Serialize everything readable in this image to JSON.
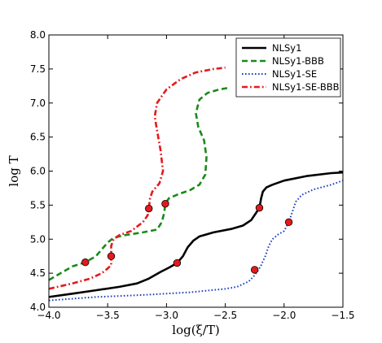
{
  "chart_data": {
    "type": "line",
    "xlabel": "log(ξ/T)",
    "ylabel": "log T",
    "xlim": [
      -4.0,
      -1.5
    ],
    "ylim": [
      4.0,
      8.0
    ],
    "xticks": [
      -4.0,
      -3.5,
      -3.0,
      -2.5,
      -2.0,
      -1.5
    ],
    "xtick_labels": [
      "−4.0",
      "−3.5",
      "−3.0",
      "−2.5",
      "−2.0",
      "−1.5"
    ],
    "yticks": [
      4.0,
      4.5,
      5.0,
      5.5,
      6.0,
      6.5,
      7.0,
      7.5,
      8.0
    ],
    "ytick_labels": [
      "4.0",
      "4.5",
      "5.0",
      "5.5",
      "6.0",
      "6.5",
      "7.0",
      "7.5",
      "8.0"
    ],
    "grid": false,
    "legend_position": "top-right",
    "marker_color": "#e31a1c",
    "series": [
      {
        "name": "NLSy1",
        "color": "#000000",
        "style": "solid",
        "points": [
          [
            -4.0,
            4.15
          ],
          [
            -3.8,
            4.2
          ],
          [
            -3.6,
            4.25
          ],
          [
            -3.4,
            4.3
          ],
          [
            -3.25,
            4.35
          ],
          [
            -3.15,
            4.42
          ],
          [
            -3.05,
            4.52
          ],
          [
            -2.98,
            4.58
          ],
          [
            -2.91,
            4.65
          ],
          [
            -2.86,
            4.75
          ],
          [
            -2.82,
            4.88
          ],
          [
            -2.77,
            4.98
          ],
          [
            -2.72,
            5.04
          ],
          [
            -2.6,
            5.1
          ],
          [
            -2.45,
            5.15
          ],
          [
            -2.35,
            5.2
          ],
          [
            -2.28,
            5.28
          ],
          [
            -2.24,
            5.38
          ],
          [
            -2.21,
            5.46
          ],
          [
            -2.195,
            5.6
          ],
          [
            -2.18,
            5.7
          ],
          [
            -2.15,
            5.76
          ],
          [
            -2.1,
            5.8
          ],
          [
            -2.0,
            5.86
          ],
          [
            -1.8,
            5.93
          ],
          [
            -1.6,
            5.97
          ],
          [
            -1.5,
            5.98
          ]
        ],
        "markers": [
          [
            -2.91,
            4.65
          ],
          [
            -2.21,
            5.46
          ]
        ]
      },
      {
        "name": "NLSy1-BBB",
        "color": "#1a8a1a",
        "style": "dashed",
        "points": [
          [
            -4.0,
            4.4
          ],
          [
            -3.9,
            4.5
          ],
          [
            -3.8,
            4.6
          ],
          [
            -3.69,
            4.66
          ],
          [
            -3.6,
            4.75
          ],
          [
            -3.55,
            4.85
          ],
          [
            -3.5,
            4.95
          ],
          [
            -3.45,
            5.02
          ],
          [
            -3.35,
            5.06
          ],
          [
            -3.2,
            5.1
          ],
          [
            -3.08,
            5.14
          ],
          [
            -3.04,
            5.25
          ],
          [
            -3.02,
            5.38
          ],
          [
            -3.01,
            5.52
          ],
          [
            -2.98,
            5.6
          ],
          [
            -2.9,
            5.66
          ],
          [
            -2.8,
            5.72
          ],
          [
            -2.72,
            5.8
          ],
          [
            -2.67,
            5.95
          ],
          [
            -2.66,
            6.2
          ],
          [
            -2.68,
            6.45
          ],
          [
            -2.73,
            6.65
          ],
          [
            -2.75,
            6.85
          ],
          [
            -2.72,
            7.05
          ],
          [
            -2.65,
            7.15
          ],
          [
            -2.55,
            7.2
          ],
          [
            -2.48,
            7.22
          ]
        ],
        "markers": [
          [
            -3.69,
            4.66
          ],
          [
            -3.01,
            5.52
          ]
        ]
      },
      {
        "name": "NLSy1-SE",
        "color": "#1f3fbf",
        "style": "dotted",
        "points": [
          [
            -4.0,
            4.1
          ],
          [
            -3.6,
            4.15
          ],
          [
            -3.2,
            4.18
          ],
          [
            -2.8,
            4.22
          ],
          [
            -2.5,
            4.27
          ],
          [
            -2.4,
            4.3
          ],
          [
            -2.3,
            4.38
          ],
          [
            -2.25,
            4.47
          ],
          [
            -2.2,
            4.6
          ],
          [
            -2.16,
            4.75
          ],
          [
            -2.13,
            4.9
          ],
          [
            -2.1,
            5.0
          ],
          [
            -2.05,
            5.07
          ],
          [
            -2.0,
            5.12
          ],
          [
            -1.96,
            5.25
          ],
          [
            -1.93,
            5.4
          ],
          [
            -1.9,
            5.55
          ],
          [
            -1.85,
            5.65
          ],
          [
            -1.75,
            5.73
          ],
          [
            -1.6,
            5.8
          ],
          [
            -1.5,
            5.86
          ]
        ],
        "markers": [
          [
            -2.25,
            4.55
          ],
          [
            -1.96,
            5.25
          ]
        ]
      },
      {
        "name": "NLSy1-SE-BBB",
        "color": "#e31a1c",
        "style": "dashdot",
        "points": [
          [
            -4.0,
            4.27
          ],
          [
            -3.8,
            4.35
          ],
          [
            -3.65,
            4.42
          ],
          [
            -3.55,
            4.5
          ],
          [
            -3.5,
            4.57
          ],
          [
            -3.47,
            4.62
          ],
          [
            -3.47,
            4.75
          ],
          [
            -3.47,
            4.9
          ],
          [
            -3.45,
            5.0
          ],
          [
            -3.4,
            5.06
          ],
          [
            -3.3,
            5.12
          ],
          [
            -3.2,
            5.25
          ],
          [
            -3.16,
            5.35
          ],
          [
            -3.15,
            5.45
          ],
          [
            -3.14,
            5.6
          ],
          [
            -3.12,
            5.7
          ],
          [
            -3.06,
            5.82
          ],
          [
            -3.03,
            6.0
          ],
          [
            -3.05,
            6.3
          ],
          [
            -3.08,
            6.6
          ],
          [
            -3.1,
            6.8
          ],
          [
            -3.08,
            7.0
          ],
          [
            -3.0,
            7.2
          ],
          [
            -2.88,
            7.35
          ],
          [
            -2.75,
            7.45
          ],
          [
            -2.6,
            7.5
          ],
          [
            -2.5,
            7.52
          ]
        ],
        "markers": [
          [
            -3.47,
            4.75
          ],
          [
            -3.15,
            5.45
          ]
        ]
      }
    ]
  }
}
